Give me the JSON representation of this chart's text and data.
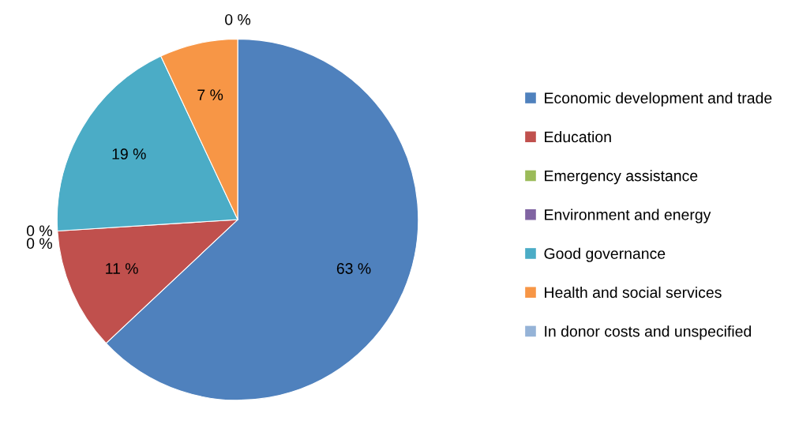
{
  "chart_data": {
    "type": "pie",
    "categories": [
      "Economic development and trade",
      "Education",
      "Emergency assistance",
      "Environment and energy",
      "Good governance",
      "Health and social services",
      "In donor costs and unspecified"
    ],
    "values": [
      63,
      11,
      0,
      0,
      19,
      7,
      0
    ],
    "colors": [
      "#4f81bd",
      "#c0504d",
      "#9bbb59",
      "#8064a2",
      "#4bacc6",
      "#f79646",
      "#95b3d7"
    ],
    "value_labels": [
      "63 %",
      "11 %",
      "0 %",
      "0 %",
      "19 %",
      "7 %",
      "0 %"
    ],
    "legend": "right"
  }
}
